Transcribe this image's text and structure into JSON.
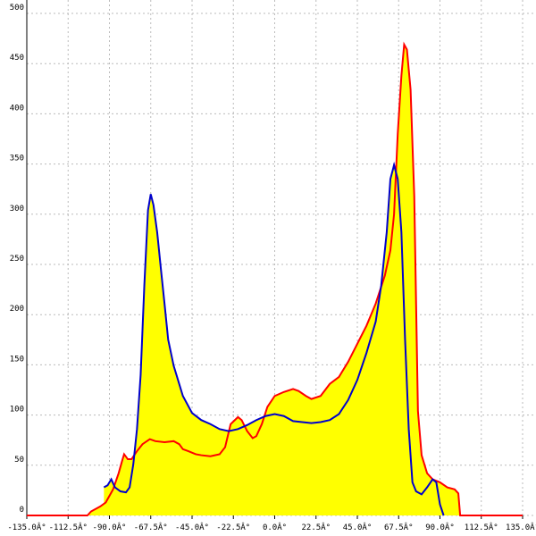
{
  "chart_data": {
    "type": "area-line",
    "fill_color": "#ffff00",
    "grid": true,
    "xlim": [
      -135,
      135
    ],
    "xticks": [
      {
        "value": -135,
        "label": "-135.0Â°"
      },
      {
        "value": -112.5,
        "label": "-112.5Â°"
      },
      {
        "value": -90,
        "label": "-90.0Â°"
      },
      {
        "value": -67.5,
        "label": "-67.5Â°"
      },
      {
        "value": -45,
        "label": "-45.0Â°"
      },
      {
        "value": -22.5,
        "label": "-22.5Â°"
      },
      {
        "value": 0,
        "label": "0.0Â°"
      },
      {
        "value": 22.5,
        "label": "22.5Â°"
      },
      {
        "value": 45,
        "label": "45.0Â°"
      },
      {
        "value": 67.5,
        "label": "67.5Â°"
      },
      {
        "value": 90,
        "label": "90.0Â°"
      },
      {
        "value": 112.5,
        "label": "112.5Â°"
      },
      {
        "value": 135,
        "label": "135.0Â°"
      }
    ],
    "ylim": [
      0,
      500
    ],
    "yticks": [
      0,
      50,
      100,
      150,
      200,
      250,
      300,
      350,
      400,
      450,
      500
    ],
    "series": [
      {
        "color": "#ff0000",
        "x": [
          -135,
          -102,
          -100,
          -95,
          -92,
          -88,
          -85,
          -83,
          -82,
          -80,
          -78,
          -75,
          -72,
          -68,
          -65,
          -60,
          -55,
          -52,
          -50,
          -47,
          -43,
          -40,
          -35,
          -30,
          -27,
          -24,
          -20,
          -18,
          -15,
          -12,
          -10,
          -7,
          -4,
          0,
          5,
          10,
          13,
          17,
          20,
          25,
          30,
          35,
          40,
          45,
          50,
          55,
          60,
          63,
          65,
          67,
          69,
          70.5,
          72,
          74,
          76,
          77,
          78,
          80,
          83,
          86,
          90,
          94,
          98,
          100,
          101,
          135
        ],
        "values": [
          0,
          0,
          4,
          9,
          13,
          26,
          42,
          55,
          61,
          56,
          56,
          64,
          71,
          76,
          74,
          73,
          74,
          71,
          66,
          64,
          61,
          60,
          59,
          61,
          68,
          91,
          98,
          95,
          84,
          77,
          79,
          91,
          108,
          119,
          123,
          126,
          124,
          119,
          116,
          119,
          131,
          138,
          153,
          171,
          189,
          211,
          239,
          264,
          300,
          380,
          438,
          469,
          464,
          424,
          318,
          211,
          104,
          60,
          42,
          36,
          33,
          28,
          26,
          22,
          0,
          0
        ]
      },
      {
        "color": "#0000cc",
        "x": [
          -93,
          -91,
          -89,
          -87,
          -84,
          -81,
          -79,
          -77,
          -75,
          -73,
          -71,
          -69,
          -67.5,
          -66,
          -64,
          -62,
          -60,
          -58,
          -55,
          -50,
          -45,
          -40,
          -35,
          -30,
          -25,
          -20,
          -15,
          -10,
          -5,
          0,
          5,
          10,
          15,
          20,
          25,
          30,
          35,
          40,
          45,
          50,
          55,
          58,
          61,
          63,
          65,
          67,
          69,
          71,
          73,
          75,
          77,
          80,
          83,
          86,
          88,
          90,
          92
        ],
        "values": [
          28,
          30,
          36,
          28,
          24,
          23,
          28,
          51,
          86,
          140,
          229,
          304,
          320,
          309,
          282,
          246,
          211,
          175,
          149,
          119,
          102,
          95,
          91,
          86,
          84,
          86,
          90,
          95,
          99,
          101,
          99,
          94,
          93,
          92,
          93,
          95,
          101,
          115,
          135,
          162,
          193,
          229,
          282,
          335,
          349,
          335,
          282,
          175,
          86,
          33,
          24,
          21,
          28,
          36,
          33,
          11,
          0
        ]
      }
    ]
  }
}
